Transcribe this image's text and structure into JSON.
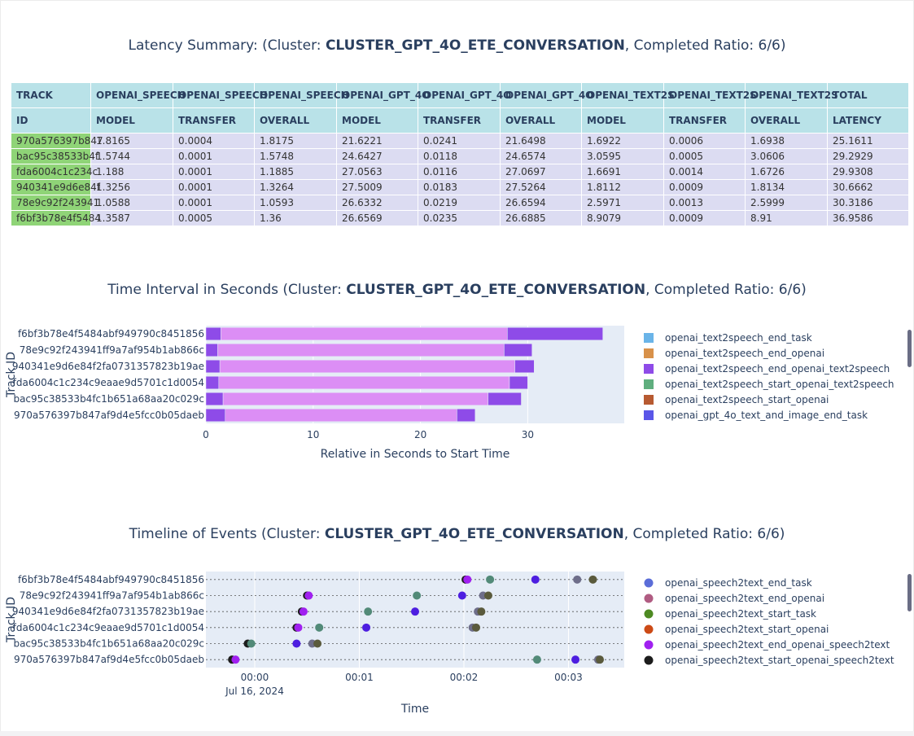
{
  "summary": {
    "title_prefix": "Latency Summary:  (Cluster: ",
    "cluster": "CLUSTER_GPT_4O_ETE_CONVERSATION",
    "title_suffix": ", Completed Ratio: 6/6)",
    "header_row1": [
      "TRACK",
      "OPENAI_SPEECH",
      "OPENAI_SPEECH",
      "OPENAI_SPEECH",
      "OPENAI_GPT_4O",
      "OPENAI_GPT_4O",
      "OPENAI_GPT_4O",
      "OPENAI_TEXT2S",
      "OPENAI_TEXT2S",
      "OPENAI_TEXT2S",
      "TOTAL"
    ],
    "header_row2": [
      "ID",
      "MODEL",
      "TRANSFER",
      "OVERALL",
      "MODEL",
      "TRANSFER",
      "OVERALL",
      "MODEL",
      "TRANSFER",
      "OVERALL",
      "LATENCY"
    ],
    "rows": [
      [
        "970a576397b847",
        "1.8165",
        "0.0004",
        "1.8175",
        "21.6221",
        "0.0241",
        "21.6498",
        "1.6922",
        "0.0006",
        "1.6938",
        "25.1611"
      ],
      [
        "bac95c38533b4f",
        "1.5744",
        "0.0001",
        "1.5748",
        "24.6427",
        "0.0118",
        "24.6574",
        "3.0595",
        "0.0005",
        "3.0606",
        "29.2929"
      ],
      [
        "fda6004c1c234c",
        "1.188",
        "0.0001",
        "1.1885",
        "27.0563",
        "0.0116",
        "27.0697",
        "1.6691",
        "0.0014",
        "1.6726",
        "29.9308"
      ],
      [
        "940341e9d6e84f",
        "1.3256",
        "0.0001",
        "1.3264",
        "27.5009",
        "0.0183",
        "27.5264",
        "1.8112",
        "0.0009",
        "1.8134",
        "30.6662"
      ],
      [
        "78e9c92f243941",
        "1.0588",
        "0.0001",
        "1.0593",
        "26.6332",
        "0.0219",
        "26.6594",
        "2.5971",
        "0.0013",
        "2.5999",
        "30.3186"
      ],
      [
        "f6bf3b78e4f5484",
        "1.3587",
        "0.0005",
        "1.36",
        "26.6569",
        "0.0235",
        "26.6885",
        "8.9079",
        "0.0009",
        "8.91",
        "36.9586"
      ]
    ]
  },
  "interval": {
    "title_prefix": "Time Interval in Seconds (Cluster: ",
    "cluster": "CLUSTER_GPT_4O_ETE_CONVERSATION",
    "title_suffix": ", Completed Ratio: 6/6)"
  },
  "timeline": {
    "title_prefix": "Timeline of Events (Cluster: ",
    "cluster": "CLUSTER_GPT_4O_ETE_CONVERSATION",
    "title_suffix": ", Completed Ratio: 6/6)"
  },
  "chart_data": [
    {
      "type": "bar",
      "orientation": "horizontal",
      "stacked": true,
      "xlabel": "Relative in Seconds to Start Time",
      "ylabel": "Track ID",
      "xlim": [
        0,
        39
      ],
      "xticks": [
        0,
        10,
        20,
        30
      ],
      "grid": true,
      "legend_position": "right",
      "categories": [
        "f6bf3b78e4f5484abf949790c8451856",
        "78e9c92f243941ff9a7af954b1ab866c",
        "940341e9d6e84f2fa0731357823b19ae",
        "fda6004c1c234c9eaae9d5701c1d0054",
        "bac95c38533b4fc1b651a68aa20c029c",
        "970a576397b847af9d4e5fcc0b05daeb"
      ],
      "series": [
        {
          "name": "openai_text2speech_end_task",
          "color": "#6ab4e8",
          "values": [
            0,
            0,
            0,
            0,
            0,
            0
          ]
        },
        {
          "name": "openai_text2speech_end_openai",
          "color": "#d8914a",
          "values": [
            0,
            0,
            0,
            0,
            0,
            0
          ]
        },
        {
          "name": "openai_text2speech_end_openai_text2speech",
          "color": "#8e4be8",
          "values": [
            8.9,
            2.6,
            1.8,
            1.7,
            3.1,
            1.7
          ]
        },
        {
          "name": "openai_text2speech_start_openai_text2speech",
          "color": "#5fae7e",
          "values": [
            0,
            0,
            0,
            0,
            0,
            0
          ]
        },
        {
          "name": "openai_text2speech_start_openai",
          "color": "#b75a31",
          "values": [
            0,
            0,
            0,
            0,
            0,
            0
          ]
        },
        {
          "name": "openai_gpt_4o_text_and_image_end_task",
          "color": "#5a56e8",
          "values": [
            0,
            0,
            0,
            0,
            0,
            0
          ]
        }
      ],
      "unlisted_segments": [
        {
          "color": "#8e4be8",
          "values": [
            1.4,
            1.1,
            1.3,
            1.2,
            1.6,
            1.8
          ]
        },
        {
          "color": "#dc8ef5",
          "values": [
            26.7,
            26.7,
            27.5,
            27.1,
            24.7,
            21.6
          ]
        }
      ]
    },
    {
      "type": "scatter",
      "xlabel": "Time",
      "ylabel": "Track ID",
      "x_tick_labels": [
        "00:00",
        "00:01",
        "00:02",
        "00:03"
      ],
      "x_date_label": "Jul 16, 2024",
      "xlim_seconds": [
        -28,
        212
      ],
      "grid": true,
      "legend_position": "right",
      "categories": [
        "f6bf3b78e4f5484abf949790c8451856",
        "78e9c92f243941ff9a7af954b1ab866c",
        "940341e9d6e84f2fa0731357823b19ae",
        "fda6004c1c234c9eaae9d5701c1d0054",
        "bac95c38533b4fc1b651a68aa20c029c",
        "970a576397b847af9d4e5fcc0b05daeb"
      ],
      "series": [
        {
          "name": "openai_speech2text_end_task",
          "color": "#5b6dd8"
        },
        {
          "name": "openai_speech2text_end_openai",
          "color": "#b05c82"
        },
        {
          "name": "openai_speech2text_start_task",
          "color": "#4d8a22"
        },
        {
          "name": "openai_speech2text_start_openai",
          "color": "#cc4a16"
        },
        {
          "name": "openai_speech2text_end_openai_speech2text",
          "color": "#a020f0"
        },
        {
          "name": "openai_speech2text_start_openai_speech2text",
          "color": "#1c1c1c"
        }
      ],
      "points": [
        {
          "track": 0,
          "t": 121,
          "color": "#1c1c1c"
        },
        {
          "track": 0,
          "t": 122,
          "color": "#a020f0"
        },
        {
          "track": 0,
          "t": 135,
          "color": "#528a78"
        },
        {
          "track": 0,
          "t": 161,
          "color": "#4d1ee0"
        },
        {
          "track": 0,
          "t": 185,
          "color": "#6e6e8a"
        },
        {
          "track": 0,
          "t": 194,
          "color": "#5a5a3c"
        },
        {
          "track": 1,
          "t": 30,
          "color": "#1c1c1c"
        },
        {
          "track": 1,
          "t": 31,
          "color": "#a020f0"
        },
        {
          "track": 1,
          "t": 93,
          "color": "#528a78"
        },
        {
          "track": 1,
          "t": 119,
          "color": "#4d1ee0"
        },
        {
          "track": 1,
          "t": 131,
          "color": "#6e6e8a"
        },
        {
          "track": 1,
          "t": 134,
          "color": "#5a5a3c"
        },
        {
          "track": 2,
          "t": 27,
          "color": "#1c1c1c"
        },
        {
          "track": 2,
          "t": 28,
          "color": "#a020f0"
        },
        {
          "track": 2,
          "t": 65,
          "color": "#528a78"
        },
        {
          "track": 2,
          "t": 92,
          "color": "#4d1ee0"
        },
        {
          "track": 2,
          "t": 128,
          "color": "#6e6e8a"
        },
        {
          "track": 2,
          "t": 130,
          "color": "#5a5a3c"
        },
        {
          "track": 3,
          "t": 24,
          "color": "#1c1c1c"
        },
        {
          "track": 3,
          "t": 25,
          "color": "#a020f0"
        },
        {
          "track": 3,
          "t": 37,
          "color": "#528a78"
        },
        {
          "track": 3,
          "t": 64,
          "color": "#4d1ee0"
        },
        {
          "track": 3,
          "t": 125,
          "color": "#6e6e8a"
        },
        {
          "track": 3,
          "t": 127,
          "color": "#5a5a3c"
        },
        {
          "track": 4,
          "t": -4,
          "color": "#1c1c1c"
        },
        {
          "track": 4,
          "t": -2,
          "color": "#528a78"
        },
        {
          "track": 4,
          "t": 24,
          "color": "#4d1ee0"
        },
        {
          "track": 4,
          "t": 33,
          "color": "#6e6e8a"
        },
        {
          "track": 4,
          "t": 36,
          "color": "#5a5a3c"
        },
        {
          "track": 5,
          "t": -13,
          "color": "#1c1c1c"
        },
        {
          "track": 5,
          "t": -11,
          "color": "#a020f0"
        },
        {
          "track": 5,
          "t": 162,
          "color": "#528a78"
        },
        {
          "track": 5,
          "t": 184,
          "color": "#4d1ee0"
        },
        {
          "track": 5,
          "t": 197,
          "color": "#6e6e8a"
        },
        {
          "track": 5,
          "t": 198,
          "color": "#5a5a3c"
        }
      ]
    }
  ]
}
